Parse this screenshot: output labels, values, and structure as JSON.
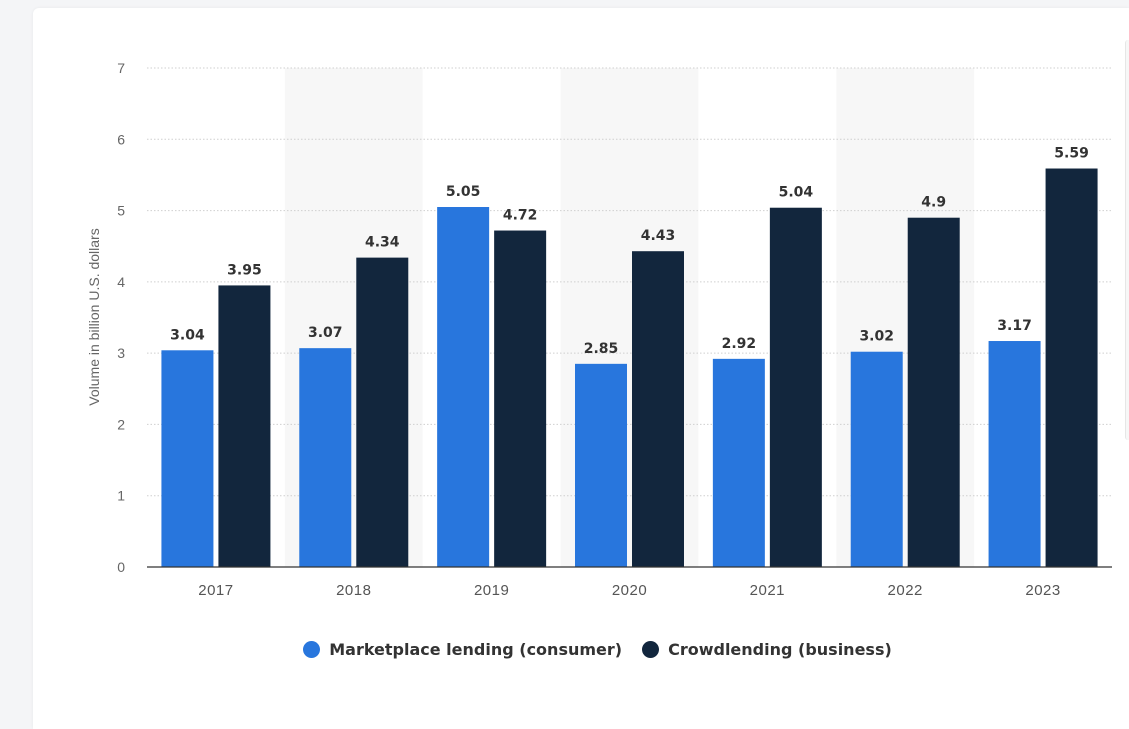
{
  "chart_data": {
    "type": "bar",
    "categories": [
      "2017",
      "2018",
      "2019",
      "2020",
      "2021",
      "2022",
      "2023"
    ],
    "series": [
      {
        "name": "Marketplace lending (consumer)",
        "color": "#2876dd",
        "values": [
          3.04,
          3.07,
          5.05,
          2.85,
          2.92,
          3.02,
          3.17
        ],
        "labels": [
          "3.04",
          "3.07",
          "5.05",
          "2.85",
          "2.92",
          "3.02",
          "3.17"
        ]
      },
      {
        "name": "Crowdlending (business)",
        "color": "#12263d",
        "values": [
          3.95,
          4.34,
          4.72,
          4.43,
          5.04,
          4.9,
          5.59
        ],
        "labels": [
          "3.95",
          "4.34",
          "4.72",
          "4.43",
          "5.04",
          "4.9",
          "5.59"
        ]
      }
    ],
    "ylabel": "Volume in billion U.S. dollars",
    "ylim": [
      0,
      7
    ],
    "yticks": [
      "0",
      "1",
      "2",
      "3",
      "4",
      "5",
      "6",
      "7"
    ],
    "grid": true,
    "legend_position": "bottom-center",
    "band_color": "#f7f7f7"
  }
}
